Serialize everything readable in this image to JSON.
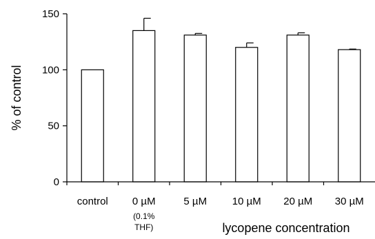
{
  "chart_data": {
    "type": "bar",
    "title": "",
    "xlabel": "lycopene concentration",
    "ylabel": "% of control",
    "ylim": [
      0,
      150
    ],
    "yticks": [
      0,
      50,
      100,
      150
    ],
    "grid": false,
    "categories": [
      "control",
      "0 µM",
      "5 µM",
      "10 µM",
      "20 µM",
      "30 µM"
    ],
    "category_sublabels": [
      "",
      "(0.1%\nTHF)",
      "",
      "",
      "",
      ""
    ],
    "series": [
      {
        "values": [
          100,
          135,
          131,
          120,
          131,
          118
        ],
        "errors": [
          0,
          11,
          1.5,
          4,
          2,
          0.5
        ]
      }
    ],
    "colors": {
      "bar_fill": "#ffffff",
      "bar_stroke": "#000000",
      "axis": "#000000"
    }
  }
}
